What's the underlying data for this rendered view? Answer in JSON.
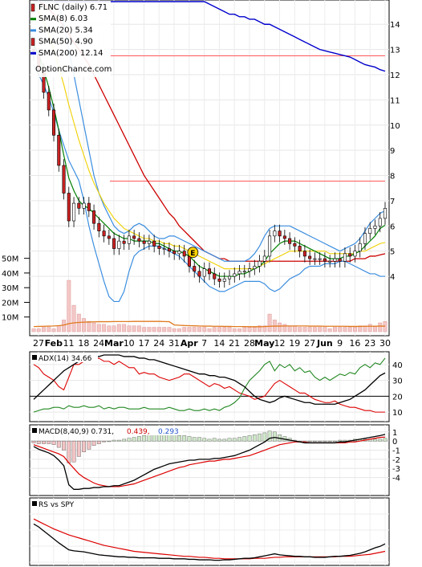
{
  "chart_data": {
    "type": "line",
    "ticker": "FLNC",
    "watermark": "OptionChance.com",
    "x_labels": [
      "27",
      "Feb",
      "11",
      "18",
      "24",
      "Mar",
      "10",
      "17",
      "24",
      "31",
      "Apr",
      "7",
      "14",
      "21",
      "28",
      "May",
      "12",
      "19",
      "27",
      "Jun",
      "9",
      "16",
      "23",
      "30"
    ],
    "month_labels": [
      "Feb",
      "Mar",
      "Apr",
      "May",
      "Jun"
    ],
    "price_axis": {
      "ticks": [
        4,
        5,
        6,
        7,
        8,
        9,
        10,
        11,
        12,
        13,
        14
      ],
      "range": [
        2.6,
        14.9
      ]
    },
    "volume_axis": {
      "ticks": [
        "10M",
        "20M",
        "30M",
        "40M",
        "50M"
      ],
      "range": [
        0,
        52
      ]
    },
    "legend": [
      {
        "label": "FLNC (daily)",
        "value": "6.71",
        "color": "#000000",
        "swatch": "candle"
      },
      {
        "label": "SMA(8)",
        "value": "6.03",
        "color": "#008000",
        "swatch": "line"
      },
      {
        "label": "SMA(20)",
        "value": "5.34",
        "color": "#3b8ee0",
        "swatch": "line"
      },
      {
        "label": "SMA(50)",
        "value": "4.90",
        "color": "#cc0000",
        "swatch": "candle"
      },
      {
        "label": "SMA(200)",
        "value": "12.14",
        "color": "#0000cc",
        "swatch": "line"
      }
    ],
    "hlines": [
      12.75,
      7.78
    ],
    "earnings_marker": {
      "label": "E",
      "x": 31.7,
      "y": 4.95
    },
    "closes": [
      12.8,
      12.2,
      11.3,
      10.6,
      9.6,
      8.4,
      7.3,
      6.2,
      6.9,
      6.7,
      6.9,
      6.6,
      6.1,
      5.8,
      5.6,
      5.5,
      5.1,
      5.4,
      5.3,
      5.6,
      5.5,
      5.4,
      5.3,
      5.4,
      5.2,
      5.1,
      5.1,
      5.0,
      4.9,
      5.0,
      4.8,
      4.4,
      4.2,
      4.0,
      4.3,
      4.1,
      3.9,
      3.8,
      3.9,
      4.0,
      4.1,
      4.2,
      4.2,
      4.3,
      4.4,
      4.6,
      4.8,
      5.6,
      5.8,
      5.6,
      5.5,
      5.3,
      5.2,
      5.0,
      4.8,
      4.7,
      4.7,
      4.7,
      4.6,
      4.6,
      4.7,
      4.6,
      4.9,
      4.8,
      5.0,
      5.3,
      5.7,
      5.9,
      6.0,
      6.3,
      6.7
    ],
    "sma8": [
      13.2,
      12.8,
      12.2,
      11.5,
      10.7,
      9.8,
      8.8,
      7.9,
      7.4,
      7.0,
      6.8,
      6.7,
      6.5,
      6.3,
      6.1,
      5.9,
      5.7,
      5.6,
      5.5,
      5.5,
      5.4,
      5.4,
      5.4,
      5.4,
      5.3,
      5.3,
      5.2,
      5.1,
      5.0,
      5.0,
      4.9,
      4.8,
      4.6,
      4.4,
      4.3,
      4.2,
      4.1,
      4.0,
      4.0,
      4.0,
      4.0,
      4.1,
      4.1,
      4.2,
      4.3,
      4.4,
      4.6,
      4.9,
      5.1,
      5.3,
      5.4,
      5.4,
      5.4,
      5.3,
      5.2,
      5.1,
      5.0,
      4.9,
      4.8,
      4.7,
      4.7,
      4.7,
      4.8,
      4.8,
      4.9,
      5.0,
      5.2,
      5.4,
      5.6,
      5.9,
      6.03
    ],
    "sma20": [
      14.8,
      14.5,
      14.1,
      13.6,
      13.0,
      12.3,
      11.6,
      10.8,
      10.1,
      9.4,
      8.8,
      8.2,
      7.7,
      7.3,
      6.9,
      6.6,
      6.3,
      6.1,
      5.9,
      5.8,
      5.7,
      5.6,
      5.5,
      5.5,
      5.4,
      5.4,
      5.3,
      5.3,
      5.2,
      5.2,
      5.1,
      5.0,
      4.9,
      4.8,
      4.7,
      4.6,
      4.5,
      4.4,
      4.3,
      4.3,
      4.3,
      4.3,
      4.3,
      4.3,
      4.3,
      4.4,
      4.5,
      4.6,
      4.7,
      4.8,
      4.9,
      5.0,
      5.0,
      5.0,
      5.0,
      5.0,
      5.0,
      5.0,
      5.0,
      4.9,
      4.9,
      4.9,
      4.9,
      4.9,
      4.9,
      5.0,
      5.0,
      5.1,
      5.2,
      5.3,
      5.34
    ],
    "sma50": [
      15.0,
      14.9,
      14.8,
      14.6,
      14.4,
      14.2,
      13.9,
      13.6,
      13.3,
      13.0,
      12.7,
      12.4,
      12.0,
      11.6,
      11.2,
      10.8,
      10.4,
      10.0,
      9.6,
      9.2,
      8.8,
      8.4,
      8.0,
      7.7,
      7.4,
      7.1,
      6.8,
      6.5,
      6.3,
      6.0,
      5.8,
      5.6,
      5.4,
      5.2,
      5.0,
      4.9,
      4.8,
      4.7,
      4.7,
      4.6,
      4.6,
      4.6,
      4.6,
      4.6,
      4.6,
      4.6,
      4.6,
      4.6,
      4.6,
      4.6,
      4.6,
      4.6,
      4.6,
      4.6,
      4.6,
      4.6,
      4.6,
      4.6,
      4.6,
      4.6,
      4.6,
      4.6,
      4.6,
      4.6,
      4.7,
      4.7,
      4.7,
      4.8,
      4.8,
      4.85,
      4.9
    ],
    "sma200": [
      18.6,
      18.5,
      18.4,
      18.3,
      18.2,
      18.1,
      18.0,
      17.9,
      17.8,
      17.7,
      17.6,
      17.5,
      17.4,
      17.3,
      17.2,
      17.1,
      17.0,
      16.9,
      16.7,
      16.6,
      16.5,
      16.3,
      16.2,
      16.1,
      15.9,
      15.8,
      15.7,
      15.6,
      15.5,
      15.4,
      15.3,
      15.2,
      15.1,
      15.0,
      14.9,
      14.8,
      14.7,
      14.6,
      14.5,
      14.4,
      14.4,
      14.3,
      14.3,
      14.2,
      14.2,
      14.1,
      14.0,
      14.0,
      13.9,
      13.8,
      13.7,
      13.6,
      13.5,
      13.4,
      13.3,
      13.2,
      13.1,
      13.0,
      12.95,
      12.9,
      12.85,
      12.8,
      12.75,
      12.7,
      12.6,
      12.5,
      12.4,
      12.35,
      12.3,
      12.2,
      12.14
    ],
    "bb_upper": [
      17.2,
      17.0,
      16.6,
      16.1,
      15.5,
      14.8,
      14.0,
      13.0,
      12.0,
      11.0,
      10.0,
      9.0,
      8.0,
      7.3,
      6.8,
      6.4,
      6.0,
      5.8,
      5.7,
      5.8,
      6.0,
      6.1,
      6.0,
      5.8,
      5.6,
      5.5,
      5.5,
      5.6,
      5.6,
      5.5,
      5.4,
      5.3,
      5.2,
      5.1,
      5.0,
      4.9,
      4.8,
      4.7,
      4.6,
      4.6,
      4.6,
      4.6,
      4.6,
      4.7,
      4.9,
      5.2,
      5.6,
      5.9,
      6.0,
      6.0,
      6.0,
      6.0,
      5.9,
      5.8,
      5.7,
      5.6,
      5.5,
      5.4,
      5.3,
      5.2,
      5.1,
      5.0,
      5.1,
      5.2,
      5.3,
      5.5,
      5.8,
      6.1,
      6.3,
      6.5,
      6.6
    ],
    "bb_lower": [
      12.4,
      12.0,
      11.6,
      11.1,
      10.5,
      9.8,
      9.2,
      8.6,
      8.2,
      7.8,
      7.0,
      6.0,
      5.2,
      4.5,
      3.8,
      3.2,
      3.0,
      3.0,
      3.4,
      4.2,
      4.8,
      5.0,
      5.1,
      5.2,
      5.2,
      5.2,
      5.1,
      5.0,
      4.9,
      4.8,
      4.6,
      4.4,
      4.2,
      4.0,
      3.8,
      3.6,
      3.5,
      3.4,
      3.4,
      3.5,
      3.6,
      3.7,
      3.8,
      3.8,
      3.8,
      3.8,
      3.7,
      3.5,
      3.4,
      3.5,
      3.7,
      3.9,
      4.0,
      4.1,
      4.3,
      4.4,
      4.4,
      4.4,
      4.5,
      4.5,
      4.5,
      4.6,
      4.6,
      4.5,
      4.4,
      4.3,
      4.2,
      4.1,
      4.1,
      4.0,
      4.0
    ],
    "volume_m": [
      2,
      2,
      3,
      3,
      2,
      4,
      8,
      35,
      18,
      12,
      9,
      7,
      6,
      5,
      5,
      4,
      4,
      5,
      5,
      4,
      4,
      4,
      3,
      3,
      3,
      3,
      3,
      3,
      2,
      2,
      3,
      3,
      3,
      3,
      3,
      2,
      3,
      3,
      3,
      3,
      2,
      2,
      3,
      3,
      3,
      4,
      4,
      12,
      8,
      6,
      5,
      4,
      4,
      3,
      3,
      3,
      3,
      3,
      3,
      2,
      3,
      3,
      3,
      3,
      3,
      4,
      4,
      5,
      4,
      6,
      7
    ],
    "volume_avg_m": [
      3.5,
      3.6,
      3.7,
      3.8,
      3.9,
      4.1,
      4.5,
      5.5,
      6.0,
      6.3,
      6.5,
      6.6,
      6.7,
      6.8,
      6.8,
      6.8,
      6.9,
      6.9,
      6.9,
      6.9,
      7.0,
      7.0,
      7.0,
      7.0,
      7.0,
      7.0,
      6.9,
      6.8,
      4.6,
      4.4,
      4.2,
      4.1,
      4.0,
      3.9,
      3.8,
      3.8,
      3.7,
      3.7,
      3.6,
      3.6,
      3.5,
      3.5,
      3.5,
      3.4,
      3.4,
      3.4,
      3.5,
      3.7,
      3.8,
      3.8,
      3.9,
      3.9,
      3.9,
      3.9,
      3.9,
      3.8,
      3.8,
      3.8,
      3.7,
      3.7,
      3.7,
      3.7,
      3.7,
      3.6,
      3.6,
      3.6,
      3.7,
      3.7,
      3.7,
      3.8,
      3.8
    ],
    "adx": {
      "label": "ADX(14)",
      "value": "34.66",
      "ticks": [
        10,
        20,
        30,
        40
      ],
      "range": [
        5,
        47
      ],
      "adx": [
        18,
        21,
        24,
        27,
        30,
        33,
        36,
        38,
        40,
        42,
        43,
        44,
        45,
        45,
        46,
        46,
        46,
        46,
        45,
        45,
        45,
        44,
        44,
        43,
        43,
        42,
        41,
        40,
        39,
        38,
        37,
        36,
        35,
        34,
        34,
        33,
        33,
        32,
        32,
        31,
        30,
        28,
        26,
        23,
        20,
        18,
        17,
        16,
        17,
        19,
        20,
        19,
        18,
        17,
        16,
        16,
        15,
        15,
        15,
        15,
        15,
        16,
        17,
        18,
        20,
        22,
        24,
        27,
        30,
        33,
        34.66
      ],
      "plus_di": [
        10,
        11,
        12,
        12,
        13,
        13,
        12,
        14,
        13,
        13,
        14,
        13,
        13,
        14,
        12,
        13,
        12,
        13,
        13,
        12,
        12,
        12,
        13,
        12,
        12,
        12,
        12,
        13,
        12,
        11,
        11,
        12,
        11,
        11,
        12,
        11,
        12,
        11,
        13,
        14,
        16,
        19,
        25,
        30,
        33,
        36,
        40,
        42,
        36,
        40,
        38,
        40,
        36,
        38,
        35,
        36,
        32,
        30,
        32,
        30,
        32,
        34,
        33,
        35,
        34,
        38,
        40,
        38,
        41,
        40,
        44
      ],
      "minus_di": [
        40,
        38,
        34,
        32,
        30,
        26,
        24,
        32,
        40,
        40,
        42,
        44,
        43,
        44,
        42,
        42,
        40,
        42,
        40,
        38,
        38,
        34,
        35,
        34,
        34,
        32,
        31,
        30,
        31,
        32,
        34,
        34,
        32,
        30,
        28,
        26,
        28,
        27,
        25,
        26,
        24,
        22,
        21,
        20,
        18,
        19,
        20,
        24,
        28,
        30,
        28,
        26,
        24,
        22,
        22,
        20,
        18,
        17,
        16,
        16,
        17,
        15,
        14,
        13,
        13,
        12,
        11,
        11,
        10,
        10,
        10
      ]
    },
    "macd": {
      "label": "MACD(8,40,9)",
      "value": "0.731,",
      "signal_value": "0.439,",
      "hist_value": "0.293",
      "ticks": [
        -4,
        -3,
        -2,
        -1,
        0,
        1
      ],
      "range": [
        -5.8,
        1.6
      ],
      "macd": [
        -0.6,
        -0.9,
        -1.1,
        -1.3,
        -1.6,
        -2.1,
        -2.7,
        -4.8,
        -5.3,
        -5.3,
        -5.2,
        -5.2,
        -5.1,
        -5.1,
        -5.0,
        -5.0,
        -4.9,
        -4.9,
        -4.7,
        -4.5,
        -4.3,
        -4.0,
        -3.7,
        -3.4,
        -3.1,
        -2.9,
        -2.7,
        -2.5,
        -2.4,
        -2.3,
        -2.2,
        -2.1,
        -2.1,
        -2.0,
        -2.0,
        -2.0,
        -1.9,
        -1.9,
        -1.8,
        -1.7,
        -1.6,
        -1.4,
        -1.2,
        -1.0,
        -0.7,
        -0.4,
        -0.1,
        0.3,
        0.4,
        0.3,
        0.2,
        0.1,
        0.0,
        -0.1,
        -0.2,
        -0.2,
        -0.2,
        -0.2,
        -0.2,
        -0.2,
        -0.2,
        -0.1,
        -0.1,
        0.0,
        0.1,
        0.2,
        0.3,
        0.4,
        0.5,
        0.6,
        0.73
      ],
      "signal": [
        -0.4,
        -0.6,
        -0.8,
        -1.0,
        -1.2,
        -1.4,
        -1.7,
        -2.4,
        -3.0,
        -3.6,
        -4.0,
        -4.3,
        -4.6,
        -4.8,
        -4.9,
        -5.0,
        -5.0,
        -5.0,
        -4.9,
        -4.8,
        -4.7,
        -4.5,
        -4.3,
        -4.1,
        -3.9,
        -3.7,
        -3.5,
        -3.3,
        -3.1,
        -2.9,
        -2.8,
        -2.6,
        -2.5,
        -2.4,
        -2.3,
        -2.2,
        -2.2,
        -2.1,
        -2.0,
        -2.0,
        -1.9,
        -1.8,
        -1.7,
        -1.6,
        -1.4,
        -1.2,
        -1.0,
        -0.8,
        -0.6,
        -0.4,
        -0.3,
        -0.2,
        -0.1,
        -0.1,
        -0.1,
        -0.2,
        -0.2,
        -0.2,
        -0.2,
        -0.2,
        -0.2,
        -0.2,
        -0.2,
        -0.1,
        -0.1,
        0.0,
        0.1,
        0.2,
        0.3,
        0.4,
        0.44
      ]
    },
    "rs": {
      "label": "RS vs SPY",
      "range": [
        0,
        100
      ],
      "rs": [
        80,
        74,
        66,
        58,
        50,
        42,
        35,
        28,
        26,
        25,
        24,
        22,
        20,
        18,
        17,
        16,
        15,
        14,
        14,
        13,
        13,
        12,
        12,
        12,
        12,
        11,
        11,
        11,
        10,
        10,
        10,
        9,
        9,
        8,
        8,
        8,
        7,
        7,
        8,
        8,
        9,
        10,
        11,
        11,
        12,
        14,
        16,
        18,
        20,
        18,
        17,
        16,
        15,
        15,
        14,
        14,
        13,
        13,
        13,
        14,
        15,
        15,
        16,
        17,
        19,
        21,
        24,
        28,
        32,
        35,
        40
      ],
      "rs_avg": [
        90,
        85,
        80,
        75,
        70,
        66,
        62,
        58,
        55,
        52,
        49,
        46,
        43,
        40,
        37,
        35,
        33,
        31,
        29,
        27,
        25,
        24,
        23,
        22,
        21,
        20,
        19,
        18,
        17,
        16,
        15,
        15,
        14,
        13,
        13,
        12,
        11,
        11,
        10,
        10,
        10,
        10,
        10,
        10,
        11,
        11,
        11,
        12,
        13,
        13,
        14,
        14,
        14,
        14,
        14,
        14,
        14,
        14,
        14,
        14,
        14,
        15,
        15,
        15,
        16,
        17,
        18,
        19,
        21,
        23,
        25
      ]
    }
  }
}
